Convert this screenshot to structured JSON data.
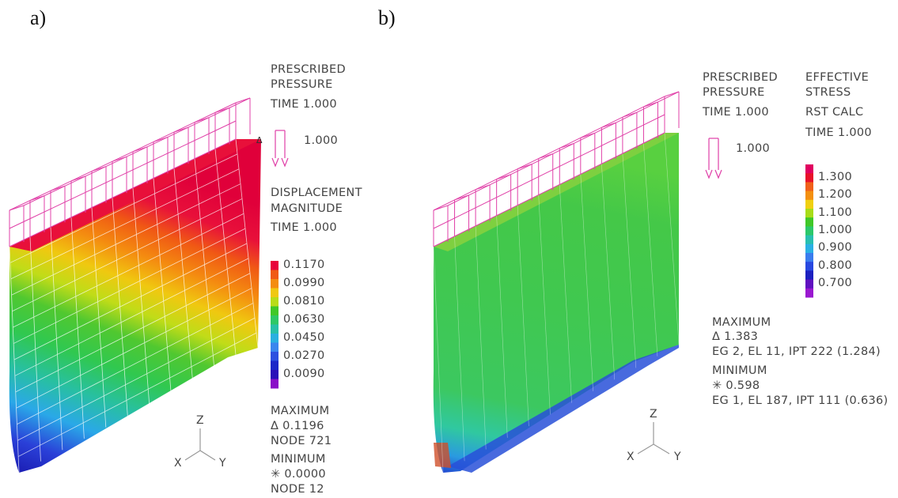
{
  "panel_a": {
    "label": "a)",
    "load_title_1": "PRESCRIBED",
    "load_title_2": "PRESSURE",
    "load_time": "TIME 1.000",
    "load_value": "1.000",
    "field_title_1": "DISPLACEMENT",
    "field_title_2": "MAGNITUDE",
    "field_time": "TIME 1.000",
    "scale": [
      {
        "label": "0.1170",
        "color": "#e8003a"
      },
      {
        "label": "",
        "color": "#f05a14"
      },
      {
        "label": "0.0990",
        "color": "#f48c10"
      },
      {
        "label": "",
        "color": "#f0c810"
      },
      {
        "label": "0.0810",
        "color": "#b8dc18"
      },
      {
        "label": "",
        "color": "#40c828"
      },
      {
        "label": "0.0630",
        "color": "#2ec866"
      },
      {
        "label": "",
        "color": "#28c0a8"
      },
      {
        "label": "0.0450",
        "color": "#2ab0e0"
      },
      {
        "label": "",
        "color": "#3a86ee"
      },
      {
        "label": "0.0270",
        "color": "#2c50e0"
      },
      {
        "label": "",
        "color": "#1c28c8"
      },
      {
        "label": "0.0090",
        "color": "#2a10b8"
      },
      {
        "label": "",
        "color": "#8a10c8"
      }
    ],
    "max_title": "MAXIMUM",
    "max_value": "Δ 0.1196",
    "max_loc": "NODE 721",
    "min_title": "MINIMUM",
    "min_value": "✳ 0.0000",
    "min_loc": "NODE 12",
    "axis_z": "Z",
    "axis_x": "X",
    "axis_y": "Y"
  },
  "panel_b": {
    "label": "b)",
    "load_title_1": "PRESCRIBED",
    "load_title_2": "PRESSURE",
    "load_time": "TIME 1.000",
    "load_value": "1.000",
    "field_title_1": "EFFECTIVE",
    "field_title_2": "STRESS",
    "field_calc": "RST CALC",
    "field_time": "TIME 1.000",
    "scale": [
      {
        "label": "",
        "color": "#e00060"
      },
      {
        "label": "1.300",
        "color": "#e8102a"
      },
      {
        "label": "",
        "color": "#f0601a"
      },
      {
        "label": "1.200",
        "color": "#f49010"
      },
      {
        "label": "",
        "color": "#f0d010"
      },
      {
        "label": "1.100",
        "color": "#a8dc18"
      },
      {
        "label": "",
        "color": "#40c828"
      },
      {
        "label": "1.000",
        "color": "#2cc86a"
      },
      {
        "label": "",
        "color": "#28c0b0"
      },
      {
        "label": "0.900",
        "color": "#2ab0e4"
      },
      {
        "label": "",
        "color": "#3a7cee"
      },
      {
        "label": "0.800",
        "color": "#2848e0"
      },
      {
        "label": "",
        "color": "#1c20c0"
      },
      {
        "label": "0.700",
        "color": "#6010c0"
      },
      {
        "label": "",
        "color": "#9a18d0"
      }
    ],
    "max_title": "MAXIMUM",
    "max_value": "Δ 1.383",
    "max_loc": "EG 2, EL 11, IPT 222 (1.284)",
    "min_title": "MINIMUM",
    "min_value": "✳ 0.598",
    "min_loc": "EG 1, EL 187, IPT 111 (0.636)",
    "axis_z": "Z",
    "axis_x": "X",
    "axis_y": "Y"
  },
  "colors": {
    "frame": "#e040a8",
    "mesh": "#ffffff",
    "axis": "#999999"
  }
}
